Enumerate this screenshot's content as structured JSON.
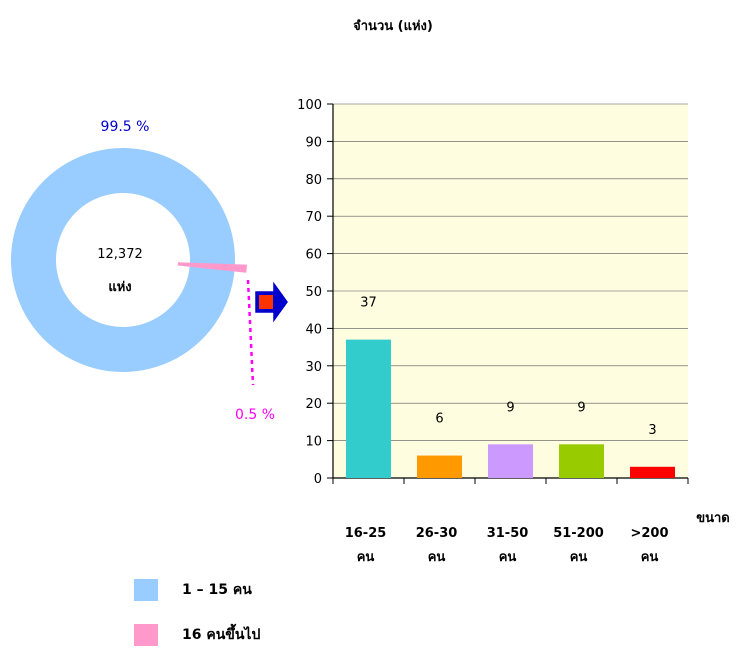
{
  "chart_data": [
    {
      "type": "pie",
      "center_label": [
        "12,372",
        "แห่ง"
      ],
      "slices": [
        {
          "name": "1 – 15 คน",
          "value": 99.5,
          "label": "99.5 %",
          "color": "#99ccff",
          "label_color": "#0000cc"
        },
        {
          "name": "16 คนขึ้นไป",
          "value": 0.5,
          "label": "0.5 %",
          "color": "#ff99cc",
          "label_color": "#ff00ff"
        }
      ]
    },
    {
      "type": "bar",
      "title": "จำนวน (แห่ง)",
      "xlabel": "ขนาด",
      "ylabel": "",
      "ylim": [
        0,
        100
      ],
      "yticks": [
        0,
        10,
        20,
        30,
        40,
        50,
        60,
        70,
        80,
        90,
        100
      ],
      "grid": true,
      "plot_background": "#fffde0",
      "categories": [
        [
          "16-25",
          "คน"
        ],
        [
          "26-30",
          "คน"
        ],
        [
          "31-50",
          "คน"
        ],
        [
          "51-200",
          "คน"
        ],
        [
          ">200",
          "คน"
        ]
      ],
      "values": [
        37,
        6,
        9,
        9,
        3
      ],
      "colors": [
        "#33cccc",
        "#ff9900",
        "#cc99ff",
        "#99cc00",
        "#ff0000"
      ]
    }
  ],
  "legend": [
    {
      "label": "1 – 15 คน",
      "color": "#99ccff"
    },
    {
      "label": "16 คนขึ้นไป",
      "color": "#ff99cc"
    }
  ],
  "arrow": {
    "fill": "#ff3300",
    "stroke": "#0000cc"
  }
}
